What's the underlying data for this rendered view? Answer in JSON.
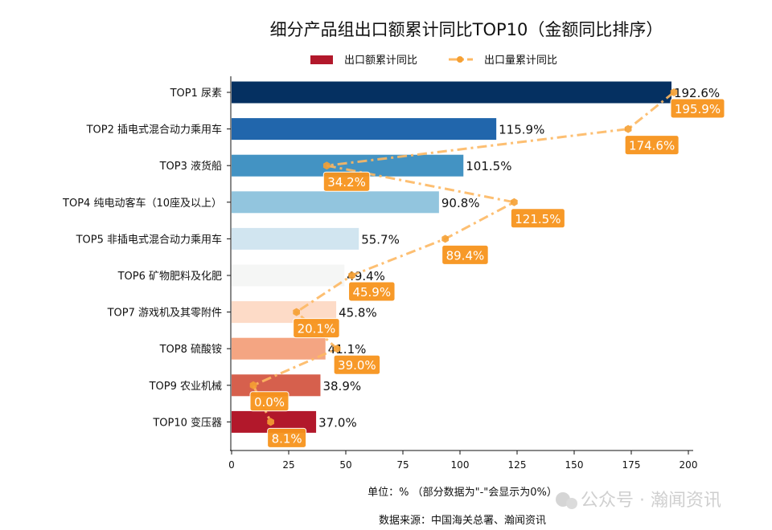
{
  "chart_data": {
    "type": "bar",
    "orientation": "horizontal",
    "title": "细分产品组出口额累计同比TOP10（金额同比排序）",
    "categories": [
      "TOP1 尿素",
      "TOP2 插电式混合动力乘用车",
      "TOP3 液货船",
      "TOP4 纯电动客车（10座及以上）",
      "TOP5 非插电式混合动力乘用车",
      "TOP6 矿物肥料及化肥",
      "TOP7 游戏机及其零附件",
      "TOP8 硫酸铵",
      "TOP9 农业机械",
      "TOP10 变压器"
    ],
    "series": [
      {
        "name": "出口额累计同比",
        "type": "bar",
        "values": [
          192.6,
          115.9,
          101.5,
          90.8,
          55.7,
          49.4,
          45.8,
          41.1,
          38.9,
          37.0
        ],
        "colors": [
          "#053061",
          "#2166ac",
          "#4393c3",
          "#92c5de",
          "#d1e5f0",
          "#f5f6f5",
          "#fddbc7",
          "#f4a582",
          "#d6604d",
          "#b2182b"
        ]
      },
      {
        "name": "出口量累计同比",
        "type": "line",
        "values": [
          195.9,
          174.6,
          34.2,
          121.5,
          89.4,
          45.9,
          20.1,
          39.0,
          0.0,
          8.1
        ],
        "color": "#fdb863",
        "marker_color": "#f5a033",
        "label_bg": "#f7941d"
      }
    ],
    "xticks": [
      0,
      25,
      50,
      75,
      100,
      125,
      150,
      175,
      200
    ],
    "xlim": [
      0,
      202
    ],
    "legend_position": "top-center",
    "grid": false,
    "unit_note": "单位：%  （部分数据为\"-\"会显示为0%）",
    "source": "数据来源：中国海关总署、瀚闻资讯",
    "watermark": "公众号 · 瀚闻资讯"
  }
}
